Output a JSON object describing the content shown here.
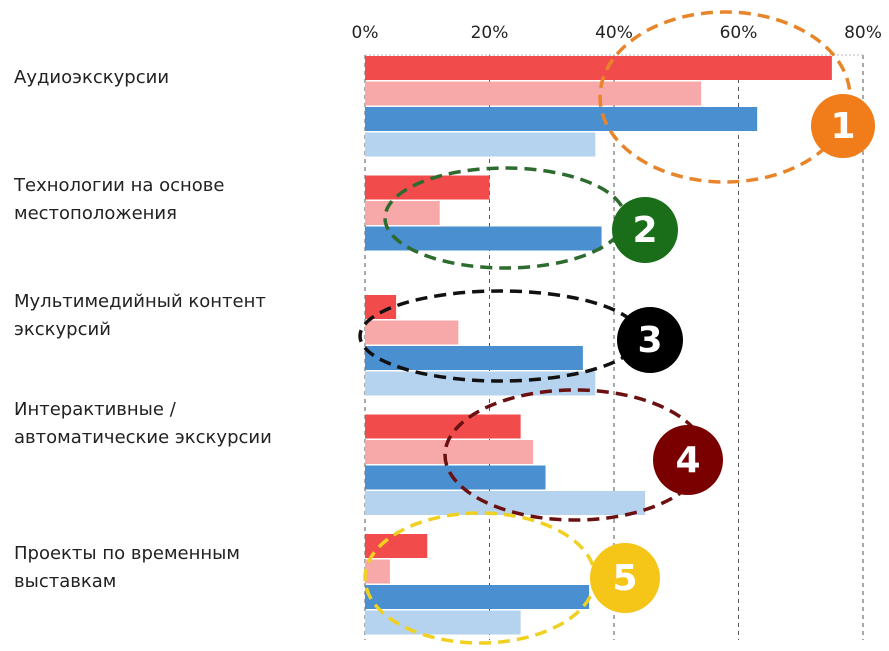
{
  "chart_data": {
    "type": "hbar",
    "categories": [
      "Аудиоэкскурсии",
      "Технологии на основе\nместоположения",
      "Мультимедийный контент\nэкскурсий",
      "Интерактивные /\nавтоматические экскурсии",
      "Проекты по временным\nвыставкам"
    ],
    "series": [
      {
        "color": "#f24b4b",
        "values": [
          75,
          20,
          5,
          25,
          10
        ]
      },
      {
        "color": "#f7a8a8",
        "values": [
          54,
          12,
          15,
          27,
          4
        ]
      },
      {
        "color": "#4a90d0",
        "values": [
          63,
          38,
          35,
          29,
          36
        ]
      },
      {
        "color": "#b5d3ee",
        "values": [
          37,
          null,
          37,
          45,
          25
        ]
      }
    ],
    "xlim": [
      0,
      80
    ],
    "xticks": [
      {
        "value": 0,
        "label": "0%"
      },
      {
        "value": 20,
        "label": "20%"
      },
      {
        "value": 40,
        "label": "40%"
      },
      {
        "value": 60,
        "label": "60%"
      },
      {
        "value": 80,
        "label": "80%"
      }
    ],
    "grid": true,
    "annotations": [
      {
        "label": "1",
        "color": "#f07d1a",
        "line_color": "#e8852a"
      },
      {
        "label": "2",
        "color": "#1a6e1a",
        "line_color": "#2e6b2e"
      },
      {
        "label": "3",
        "color": "#000000",
        "line_color": "#111111"
      },
      {
        "label": "4",
        "color": "#7a0000",
        "line_color": "#6b1010"
      },
      {
        "label": "5",
        "color": "#f5c518",
        "line_color": "#f0d020"
      }
    ]
  }
}
